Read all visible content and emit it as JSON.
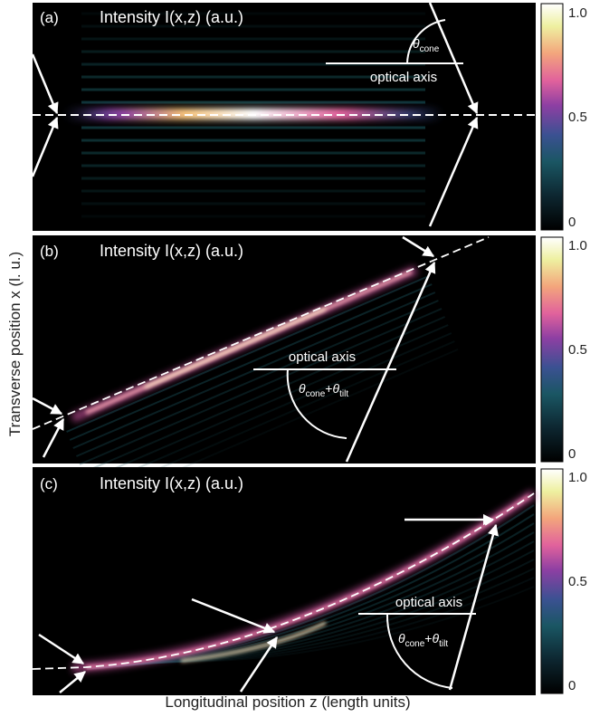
{
  "figure": {
    "ylabel": "Transverse position x (l. u.)",
    "xlabel": "Longitudinal position z (length units)",
    "panel_title": "Intensity I(x,z) (a.u.)",
    "optical_axis_label": "optical axis",
    "theta_cone": "θcone",
    "theta_sum": "θcone+θtilt"
  },
  "colors": {
    "background": "#000000",
    "colormap": [
      "#000000",
      "#0b1f2a",
      "#164a5a",
      "#3a4c8c",
      "#8b3fa0",
      "#e0609a",
      "#f2a77a",
      "#f6e07a",
      "#ffffff"
    ],
    "annotation": "#ffffff"
  },
  "chart_data": [
    {
      "type": "heatmap",
      "panel": "(a)",
      "title": "Intensity I(x,z) (a.u.)",
      "colorbar_ticks": [
        "0",
        "0.5",
        "1.0"
      ],
      "colorbar_range": [
        0,
        1
      ],
      "beam_shape": "straight, along optical axis",
      "annotations": [
        "θcone",
        "optical axis"
      ]
    },
    {
      "type": "heatmap",
      "panel": "(b)",
      "title": "Intensity I(x,z) (a.u.)",
      "colorbar_ticks": [
        "0",
        "0.5",
        "1.0"
      ],
      "colorbar_range": [
        0,
        1
      ],
      "beam_shape": "straight, tilted",
      "annotations": [
        "optical axis",
        "θcone+θtilt"
      ]
    },
    {
      "type": "heatmap",
      "panel": "(c)",
      "title": "Intensity I(x,z) (a.u.)",
      "colorbar_ticks": [
        "0",
        "0.5",
        "1.0"
      ],
      "colorbar_range": [
        0,
        1
      ],
      "beam_shape": "curved (accelerating)",
      "annotations": [
        "optical axis",
        "θcone+θtilt"
      ]
    }
  ]
}
